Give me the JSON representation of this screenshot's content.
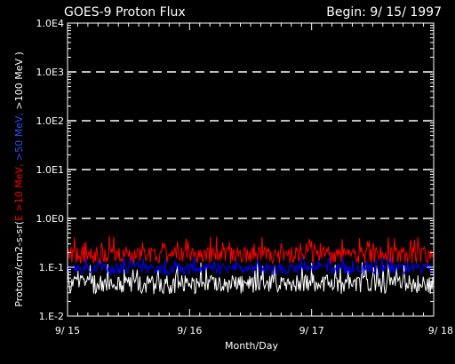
{
  "chart_data": {
    "type": "line",
    "title": "GOES-9 Proton Flux",
    "begin_label": "Begin: 9/ 15/ 1997",
    "xlabel": "Month/Day",
    "ylabel_parts": [
      {
        "text": "Protons/cm2-s-sr(",
        "color": "#ffffff"
      },
      {
        "text": "E >10 MeV, ",
        "color": "#ff0000"
      },
      {
        "text": ">50 MeV, ",
        "color": "#3050ff"
      },
      {
        "text": ">100 MeV )",
        "color": "#ffffff"
      }
    ],
    "y_scale": "log",
    "ylim": [
      0.01,
      10000
    ],
    "y_ticks": [
      {
        "value": 10000,
        "label": "1.0E4"
      },
      {
        "value": 1000,
        "label": "1.0E3"
      },
      {
        "value": 100,
        "label": "1.0E2"
      },
      {
        "value": 10,
        "label": "1.0E1"
      },
      {
        "value": 1,
        "label": "1.0E0"
      },
      {
        "value": 0.1,
        "label": "1.E-1"
      },
      {
        "value": 0.01,
        "label": "1.E-2"
      }
    ],
    "x_range_days": [
      0,
      3
    ],
    "x_ticks": [
      {
        "value": 0,
        "label": "9/ 15"
      },
      {
        "value": 1,
        "label": "9/ 16"
      },
      {
        "value": 2,
        "label": "9/ 17"
      },
      {
        "value": 3,
        "label": "9/ 18"
      }
    ],
    "grid": {
      "dashed_horizontal_at": [
        1,
        10,
        100,
        1000
      ]
    },
    "series": [
      {
        "color": "#ff0000",
        "label_key": "E >10 MeV",
        "typical": 0.2,
        "low": 0.12,
        "high": 0.45
      },
      {
        "color": "#0000ff",
        "label_key": ">50 MeV",
        "typical": 0.1,
        "low": 0.07,
        "high": 0.17
      },
      {
        "color": "#ffffff",
        "label_key": ">100 MeV",
        "typical": 0.05,
        "low": 0.028,
        "high": 0.13
      }
    ]
  }
}
